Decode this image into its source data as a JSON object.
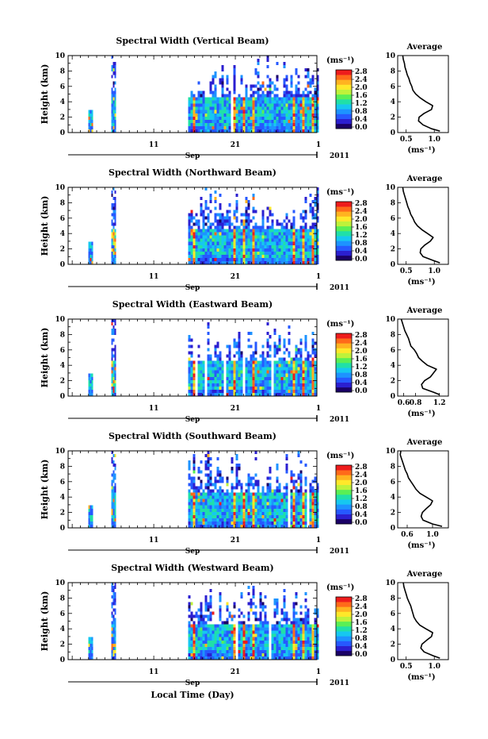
{
  "figure": {
    "xlabel": "Local Time (Day)",
    "month_label": "Sep",
    "year_label": "2011",
    "x_tick_labels": [
      "11",
      "21",
      "1"
    ],
    "y_label": "Height (km)",
    "y_tick_labels": [
      "0",
      "2",
      "4",
      "6",
      "8",
      "10"
    ],
    "colorbar_unit": "(ms⁻¹)",
    "avg_title": "Average",
    "avg_xlabel": "(ms⁻¹)"
  },
  "colors": {
    "colormap": [
      "#1a0066",
      "#2b1fd0",
      "#2659ff",
      "#1d93ff",
      "#16c8f0",
      "#20e0a8",
      "#5aef55",
      "#bff23a",
      "#ffe82a",
      "#ffb320",
      "#ff6a1a",
      "#ee1c1c"
    ]
  },
  "chart_data": [
    {
      "type": "heatmap",
      "title": "Spectral Width (Vertical Beam)",
      "colorbar_ticks": [
        "0.0",
        "0.4",
        "0.8",
        "1.2",
        "1.6",
        "2.0",
        "2.4",
        "2.8"
      ],
      "colorbar_range": [
        0.0,
        2.8
      ],
      "ylim": [
        0,
        10
      ],
      "data_days": [
        [
          3,
          3.4
        ],
        [
          5.8,
          6.2
        ],
        [
          15.2,
          31
        ]
      ],
      "avg_ticks": [
        "0.5",
        "1.0"
      ],
      "avg_xlim": [
        0.35,
        1.25
      ],
      "avg_profile": {
        "height_km": [
          0.2,
          0.5,
          1,
          1.5,
          2,
          2.5,
          3,
          3.5,
          4,
          4.5,
          5,
          5.5,
          6,
          6.5,
          7,
          7.5,
          8,
          8.5,
          9,
          9.5,
          10
        ],
        "value": [
          1.1,
          0.95,
          0.8,
          0.72,
          0.73,
          0.82,
          0.95,
          0.97,
          0.85,
          0.75,
          0.67,
          0.62,
          0.6,
          0.57,
          0.55,
          0.52,
          0.5,
          0.48,
          0.47,
          0.45,
          0.44
        ]
      }
    },
    {
      "type": "heatmap",
      "title": "Spectral Width (Northward Beam)",
      "colorbar_ticks": [
        "0.0",
        "0.4",
        "0.8",
        "1.2",
        "1.6",
        "2.0",
        "2.4",
        "2.8"
      ],
      "colorbar_range": [
        0.0,
        2.8
      ],
      "ylim": [
        0,
        10
      ],
      "data_days": [
        [
          3,
          3.4
        ],
        [
          5.8,
          6.2
        ],
        [
          15.2,
          31
        ]
      ],
      "avg_ticks": [
        "0.5",
        "1.0"
      ],
      "avg_xlim": [
        0.35,
        1.25
      ],
      "avg_profile": {
        "height_km": [
          0.2,
          0.5,
          1,
          1.5,
          2,
          2.5,
          3,
          3.5,
          4,
          4.5,
          5,
          5.5,
          6,
          6.5,
          7,
          7.5,
          8,
          8.5,
          9,
          9.5,
          10
        ],
        "value": [
          1.1,
          0.98,
          0.8,
          0.75,
          0.76,
          0.83,
          0.93,
          0.98,
          0.88,
          0.78,
          0.7,
          0.65,
          0.62,
          0.58,
          0.56,
          0.53,
          0.51,
          0.49,
          0.47,
          0.45,
          0.44
        ]
      }
    },
    {
      "type": "heatmap",
      "title": "Spectral Width (Eastward Beam)",
      "colorbar_ticks": [
        "0.0",
        "0.4",
        "0.8",
        "1.2",
        "1.6",
        "2.0",
        "2.4",
        "2.8"
      ],
      "colorbar_range": [
        0.0,
        2.8
      ],
      "ylim": [
        0,
        10
      ],
      "data_days": [
        [
          3,
          3.4
        ],
        [
          5.8,
          6.2
        ],
        [
          15.2,
          31
        ]
      ],
      "avg_ticks": [
        "0.6",
        "0.8",
        "1.2"
      ],
      "avg_xlim": [
        0.5,
        1.35
      ],
      "avg_profile": {
        "height_km": [
          0.2,
          0.5,
          1,
          1.5,
          2,
          2.5,
          3,
          3.5,
          4,
          4.5,
          5,
          5.5,
          6,
          6.5,
          7,
          7.5,
          8,
          8.5,
          9,
          9.5,
          10
        ],
        "value": [
          1.2,
          1.1,
          0.92,
          0.9,
          0.95,
          1.05,
          1.1,
          1.15,
          1.0,
          0.92,
          0.85,
          0.82,
          0.78,
          0.72,
          0.7,
          0.68,
          0.65,
          0.62,
          0.6,
          0.58,
          0.56
        ]
      }
    },
    {
      "type": "heatmap",
      "title": "Spectral Width (Southward Beam)",
      "colorbar_ticks": [
        "0.0",
        "0.4",
        "0.8",
        "1.2",
        "1.6",
        "2.0",
        "2.4",
        "2.8"
      ],
      "colorbar_range": [
        0.0,
        2.8
      ],
      "ylim": [
        0,
        10
      ],
      "data_days": [
        [
          3,
          3.4
        ],
        [
          5.8,
          6.2
        ],
        [
          15.2,
          31
        ]
      ],
      "avg_ticks": [
        "0.6",
        "1.0"
      ],
      "avg_xlim": [
        0.45,
        1.25
      ],
      "avg_profile": {
        "height_km": [
          0.2,
          0.5,
          1,
          1.5,
          2,
          2.5,
          3,
          3.5,
          4,
          4.5,
          5,
          5.5,
          6,
          6.5,
          7,
          7.5,
          8,
          8.5,
          9,
          9.5,
          10
        ],
        "value": [
          1.15,
          1.0,
          0.85,
          0.82,
          0.84,
          0.9,
          0.97,
          1.0,
          0.9,
          0.8,
          0.74,
          0.7,
          0.66,
          0.62,
          0.6,
          0.57,
          0.55,
          0.53,
          0.51,
          0.49,
          0.5
        ]
      }
    },
    {
      "type": "heatmap",
      "title": "Spectral Width (Westward Beam)",
      "colorbar_ticks": [
        "0.0",
        "0.4",
        "0.8",
        "1.2",
        "1.6",
        "2.0",
        "2.4",
        "2.8"
      ],
      "colorbar_range": [
        0.0,
        2.8
      ],
      "ylim": [
        0,
        10
      ],
      "data_days": [
        [
          3,
          3.4
        ],
        [
          5.8,
          6.2
        ],
        [
          15.2,
          31
        ]
      ],
      "avg_ticks": [
        "0.5",
        "1.0"
      ],
      "avg_xlim": [
        0.35,
        1.25
      ],
      "avg_profile": {
        "height_km": [
          0.2,
          0.5,
          1,
          1.5,
          2,
          2.5,
          3,
          3.5,
          4,
          4.5,
          5,
          5.5,
          6,
          6.5,
          7,
          7.5,
          8,
          8.5,
          9,
          9.5,
          10
        ],
        "value": [
          1.1,
          0.98,
          0.82,
          0.76,
          0.78,
          0.86,
          0.95,
          0.97,
          0.85,
          0.74,
          0.68,
          0.64,
          0.62,
          0.6,
          0.58,
          0.55,
          0.52,
          0.5,
          0.48,
          0.46,
          0.45
        ]
      }
    }
  ]
}
